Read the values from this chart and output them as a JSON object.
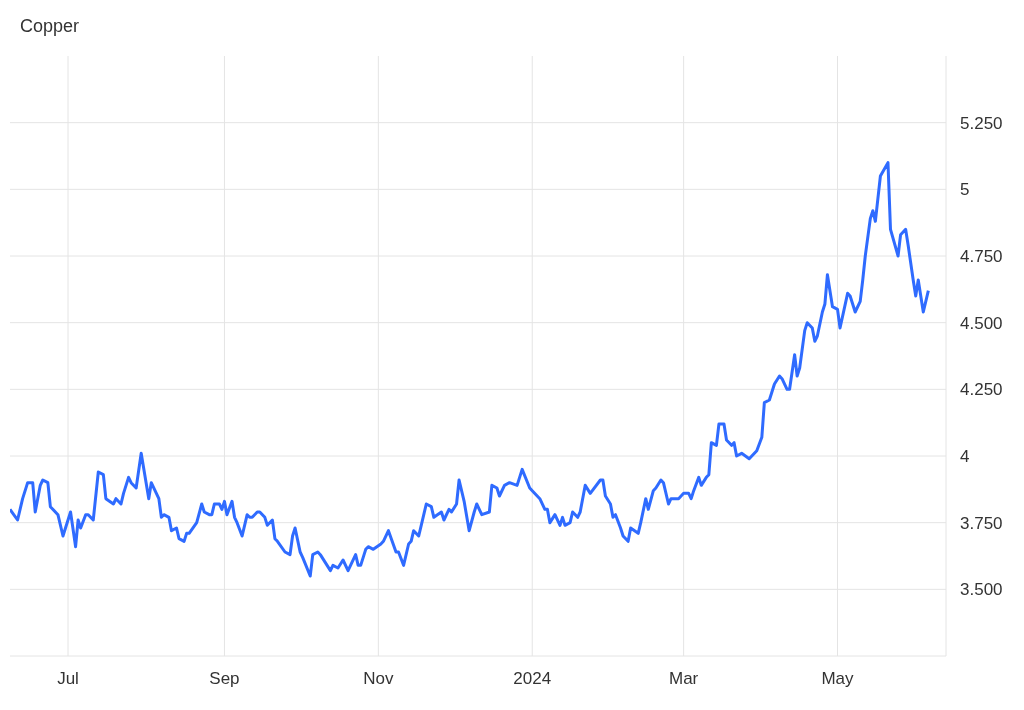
{
  "chart_data": {
    "type": "line",
    "title": "Copper",
    "x": [
      "2023-06-08",
      "2023-06-11",
      "2023-06-13",
      "2023-06-15",
      "2023-06-17",
      "2023-06-18",
      "2023-06-20",
      "2023-06-21",
      "2023-06-23",
      "2023-06-24",
      "2023-06-27",
      "2023-06-29",
      "2023-07-02",
      "2023-07-04",
      "2023-07-05",
      "2023-07-06",
      "2023-07-08",
      "2023-07-09",
      "2023-07-11",
      "2023-07-13",
      "2023-07-15",
      "2023-07-16",
      "2023-07-19",
      "2023-07-20",
      "2023-07-22",
      "2023-07-23",
      "2023-07-25",
      "2023-07-26",
      "2023-07-28",
      "2023-07-30",
      "2023-08-02",
      "2023-08-03",
      "2023-08-06",
      "2023-08-07",
      "2023-08-08",
      "2023-08-10",
      "2023-08-11",
      "2023-08-13",
      "2023-08-14",
      "2023-08-16",
      "2023-08-17",
      "2023-08-18",
      "2023-08-21",
      "2023-08-23",
      "2023-08-24",
      "2023-08-26",
      "2023-08-27",
      "2023-08-28",
      "2023-08-30",
      "2023-08-31",
      "2023-09-01",
      "2023-09-02",
      "2023-09-04",
      "2023-09-05",
      "2023-09-06",
      "2023-09-08",
      "2023-09-10",
      "2023-09-11",
      "2023-09-12",
      "2023-09-14",
      "2023-09-15",
      "2023-09-17",
      "2023-09-18",
      "2023-09-20",
      "2023-09-21",
      "2023-09-22",
      "2023-09-25",
      "2023-09-27",
      "2023-09-28",
      "2023-09-29",
      "2023-10-01",
      "2023-10-02",
      "2023-10-05",
      "2023-10-06",
      "2023-10-08",
      "2023-10-09",
      "2023-10-13",
      "2023-10-14",
      "2023-10-16",
      "2023-10-18",
      "2023-10-20",
      "2023-10-23",
      "2023-10-24",
      "2023-10-25",
      "2023-10-27",
      "2023-10-28",
      "2023-10-30",
      "2023-11-02",
      "2023-11-03",
      "2023-11-05",
      "2023-11-08",
      "2023-11-09",
      "2023-11-11",
      "2023-11-13",
      "2023-11-14",
      "2023-11-15",
      "2023-11-17",
      "2023-11-18",
      "2023-11-20",
      "2023-11-22",
      "2023-11-23",
      "2023-11-26",
      "2023-11-27",
      "2023-11-29",
      "2023-11-30",
      "2023-12-02",
      "2023-12-03",
      "2023-12-05",
      "2023-12-07",
      "2023-12-09",
      "2023-12-10",
      "2023-12-12",
      "2023-12-15",
      "2023-12-16",
      "2023-12-18",
      "2023-12-19",
      "2023-12-21",
      "2023-12-23",
      "2023-12-26",
      "2023-12-28",
      "2023-12-31",
      "2024-01-01",
      "2024-01-04",
      "2024-01-06",
      "2024-01-07",
      "2024-01-08",
      "2024-01-10",
      "2024-01-12",
      "2024-01-13",
      "2024-01-14",
      "2024-01-16",
      "2024-01-17",
      "2024-01-19",
      "2024-01-20",
      "2024-01-22",
      "2024-01-24",
      "2024-01-28",
      "2024-01-29",
      "2024-01-30",
      "2024-02-01",
      "2024-02-02",
      "2024-02-03",
      "2024-02-05",
      "2024-02-06",
      "2024-02-08",
      "2024-02-09",
      "2024-02-12",
      "2024-02-13",
      "2024-02-15",
      "2024-02-16",
      "2024-02-18",
      "2024-02-19",
      "2024-02-21",
      "2024-02-22",
      "2024-02-24",
      "2024-02-25",
      "2024-02-27",
      "2024-02-28",
      "2024-03-01",
      "2024-03-03",
      "2024-03-04",
      "2024-03-05",
      "2024-03-07",
      "2024-03-08",
      "2024-03-10",
      "2024-03-11",
      "2024-03-12",
      "2024-03-14",
      "2024-03-15",
      "2024-03-17",
      "2024-03-18",
      "2024-03-20",
      "2024-03-21",
      "2024-03-22",
      "2024-03-24",
      "2024-03-27",
      "2024-03-30",
      "2024-04-01",
      "2024-04-02",
      "2024-04-04",
      "2024-04-05",
      "2024-04-06",
      "2024-04-08",
      "2024-04-09",
      "2024-04-11",
      "2024-04-12",
      "2024-04-14",
      "2024-04-15",
      "2024-04-16",
      "2024-04-18",
      "2024-04-19",
      "2024-04-21",
      "2024-04-22",
      "2024-04-23",
      "2024-04-25",
      "2024-04-26",
      "2024-04-27",
      "2024-04-29",
      "2024-05-01",
      "2024-05-02",
      "2024-05-05",
      "2024-05-06",
      "2024-05-08",
      "2024-05-10",
      "2024-05-11",
      "2024-05-12",
      "2024-05-14",
      "2024-05-15",
      "2024-05-16",
      "2024-05-18",
      "2024-05-21",
      "2024-05-22",
      "2024-05-25",
      "2024-05-26",
      "2024-05-28",
      "2024-05-29",
      "2024-05-31",
      "2024-06-01",
      "2024-06-02",
      "2024-06-04",
      "2024-06-06"
    ],
    "series": [
      {
        "color": "#2f6bff",
        "values": [
          3.8,
          3.76,
          3.84,
          3.9,
          3.9,
          3.79,
          3.89,
          3.91,
          3.9,
          3.81,
          3.78,
          3.7,
          3.79,
          3.66,
          3.76,
          3.73,
          3.78,
          3.78,
          3.76,
          3.94,
          3.93,
          3.84,
          3.82,
          3.84,
          3.82,
          3.86,
          3.92,
          3.9,
          3.88,
          4.01,
          3.84,
          3.9,
          3.84,
          3.77,
          3.78,
          3.77,
          3.72,
          3.73,
          3.69,
          3.68,
          3.71,
          3.71,
          3.75,
          3.82,
          3.79,
          3.78,
          3.78,
          3.82,
          3.82,
          3.8,
          3.83,
          3.78,
          3.83,
          3.77,
          3.75,
          3.7,
          3.78,
          3.77,
          3.77,
          3.79,
          3.79,
          3.77,
          3.74,
          3.76,
          3.69,
          3.68,
          3.64,
          3.63,
          3.7,
          3.73,
          3.64,
          3.62,
          3.55,
          3.63,
          3.64,
          3.63,
          3.57,
          3.59,
          3.58,
          3.61,
          3.57,
          3.63,
          3.59,
          3.59,
          3.65,
          3.66,
          3.65,
          3.67,
          3.68,
          3.72,
          3.64,
          3.64,
          3.59,
          3.67,
          3.68,
          3.72,
          3.7,
          3.74,
          3.82,
          3.81,
          3.77,
          3.79,
          3.76,
          3.8,
          3.79,
          3.82,
          3.91,
          3.83,
          3.72,
          3.79,
          3.82,
          3.78,
          3.79,
          3.89,
          3.88,
          3.85,
          3.89,
          3.9,
          3.89,
          3.95,
          3.88,
          3.87,
          3.84,
          3.8,
          3.8,
          3.75,
          3.78,
          3.74,
          3.77,
          3.74,
          3.75,
          3.79,
          3.77,
          3.79,
          3.89,
          3.86,
          3.91,
          3.91,
          3.85,
          3.82,
          3.77,
          3.78,
          3.73,
          3.7,
          3.68,
          3.73,
          3.71,
          3.75,
          3.84,
          3.8,
          3.87,
          3.88,
          3.91,
          3.9,
          3.82,
          3.84,
          3.84,
          3.84,
          3.86,
          3.86,
          3.84,
          3.87,
          3.92,
          3.89,
          3.92,
          3.93,
          4.05,
          4.04,
          4.12,
          4.12,
          4.06,
          4.04,
          4.05,
          4.0,
          4.01,
          3.99,
          4.02,
          4.07,
          4.2,
          4.21,
          4.24,
          4.27,
          4.3,
          4.29,
          4.25,
          4.25,
          4.38,
          4.3,
          4.33,
          4.47,
          4.5,
          4.48,
          4.43,
          4.45,
          4.54,
          4.57,
          4.68,
          4.56,
          4.55,
          4.48,
          4.61,
          4.6,
          4.54,
          4.58,
          4.66,
          4.75,
          4.89,
          4.92,
          4.88,
          5.05,
          5.1,
          4.85,
          4.75,
          4.83,
          4.85,
          4.79,
          4.66,
          4.6,
          4.66,
          4.54,
          4.62
        ]
      }
    ],
    "xlim": [
      "2023-06-08",
      "2024-06-13"
    ],
    "xticks": [
      {
        "value": "2023-07-01",
        "label": "Jul"
      },
      {
        "value": "2023-09-01",
        "label": "Sep"
      },
      {
        "value": "2023-11-01",
        "label": "Nov"
      },
      {
        "value": "2024-01-01",
        "label": "2024"
      },
      {
        "value": "2024-03-01",
        "label": "Mar"
      },
      {
        "value": "2024-05-01",
        "label": "May"
      }
    ],
    "ylim": [
      3.25,
      5.5
    ],
    "yticks": [
      {
        "value": 3.5,
        "label": "3.500"
      },
      {
        "value": 3.75,
        "label": "3.750"
      },
      4,
      {
        "value": 4.25,
        "label": "4.250"
      },
      {
        "value": 4.5,
        "label": "4.500"
      },
      {
        "value": 4.75,
        "label": "4.750"
      },
      5,
      {
        "value": 5.25,
        "label": "5.250"
      }
    ],
    "grid": true,
    "marker": "none",
    "line_style": "solid"
  }
}
